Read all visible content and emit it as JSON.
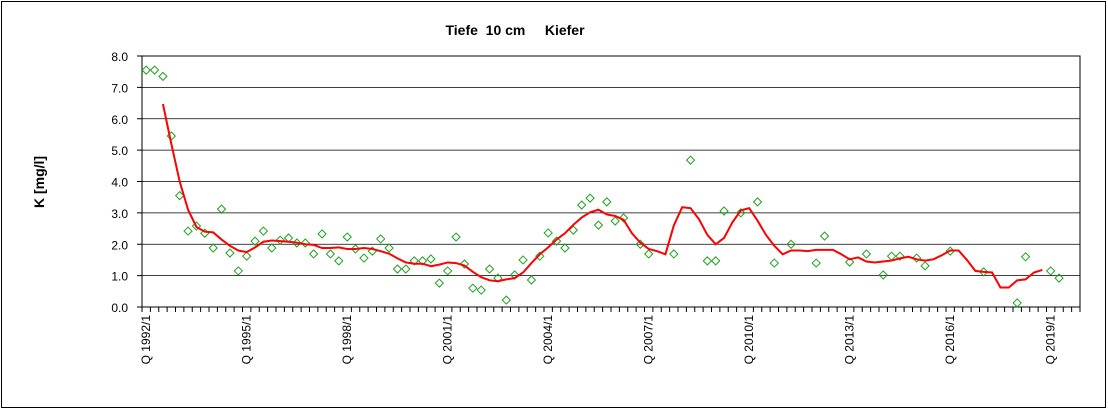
{
  "chart_data": {
    "type": "line",
    "title": "Tiefe  10 cm     Kiefer",
    "y_label": "K [mg/l]",
    "categories": [
      "Q 1992/1",
      null,
      null,
      null,
      null,
      null,
      null,
      null,
      null,
      null,
      null,
      null,
      "Q 1995/1",
      null,
      null,
      null,
      null,
      null,
      null,
      null,
      null,
      null,
      null,
      null,
      "Q 1998/1",
      null,
      null,
      null,
      null,
      null,
      null,
      null,
      null,
      null,
      null,
      null,
      "Q 2001/1",
      null,
      null,
      null,
      null,
      null,
      null,
      null,
      null,
      null,
      null,
      null,
      "Q 2004/1",
      null,
      null,
      null,
      null,
      null,
      null,
      null,
      null,
      null,
      null,
      null,
      "Q 2007/1",
      null,
      null,
      null,
      null,
      null,
      null,
      null,
      null,
      null,
      null,
      null,
      "Q 2010/1",
      null,
      null,
      null,
      null,
      null,
      null,
      null,
      null,
      null,
      null,
      null,
      "Q 2013/1",
      null,
      null,
      null,
      null,
      null,
      null,
      null,
      null,
      null,
      null,
      null,
      "Q 2016/1",
      null,
      null,
      null,
      null,
      null,
      null,
      null,
      null,
      null,
      null,
      null,
      "Q 2019/1",
      null,
      null,
      null
    ],
    "series": [
      {
        "style": "markers",
        "color": "#22a022",
        "values": [
          7.55,
          7.55,
          7.35,
          5.45,
          3.55,
          2.42,
          2.58,
          2.35,
          1.88,
          3.12,
          1.72,
          1.15,
          1.62,
          2.1,
          2.42,
          1.88,
          2.13,
          2.2,
          2.04,
          2.04,
          1.69,
          2.33,
          1.69,
          1.47,
          2.23,
          1.85,
          1.56,
          1.78,
          2.17,
          1.88,
          1.21,
          1.21,
          1.47,
          1.47,
          1.53,
          0.76,
          1.15,
          2.23,
          1.37,
          0.6,
          0.54,
          1.21,
          0.92,
          0.22,
          1.02,
          1.5,
          0.86,
          1.62,
          2.36,
          2.1,
          1.88,
          2.45,
          3.25,
          3.47,
          2.61,
          3.35,
          2.74,
          2.84,
          null,
          2.0,
          1.69,
          null,
          null,
          1.69,
          null,
          4.68,
          null,
          1.47,
          1.47,
          3.06,
          null,
          3.0,
          null,
          3.35,
          null,
          1.4,
          null,
          2.0,
          null,
          null,
          1.4,
          2.26,
          null,
          null,
          1.43,
          null,
          1.69,
          null,
          1.02,
          1.62,
          1.62,
          null,
          1.56,
          1.31,
          null,
          null,
          1.78,
          null,
          null,
          null,
          1.12,
          null,
          null,
          null,
          0.13,
          1.6,
          null,
          null,
          1.15,
          0.92,
          null,
          null
        ]
      },
      {
        "style": "line",
        "color": "#ff0000",
        "values": [
          null,
          null,
          6.47,
          5.2,
          4.0,
          3.1,
          2.55,
          2.4,
          2.38,
          2.15,
          1.95,
          1.8,
          1.75,
          1.9,
          2.08,
          2.12,
          2.1,
          2.08,
          2.05,
          2.0,
          1.98,
          1.88,
          1.88,
          1.9,
          1.85,
          1.85,
          1.88,
          1.85,
          1.78,
          1.7,
          1.55,
          1.42,
          1.38,
          1.38,
          1.3,
          1.35,
          1.42,
          1.4,
          1.32,
          1.12,
          0.95,
          0.85,
          0.82,
          0.88,
          0.92,
          1.1,
          1.4,
          1.68,
          1.9,
          2.15,
          2.35,
          2.62,
          2.85,
          3.02,
          3.1,
          2.95,
          2.9,
          2.78,
          2.35,
          2.05,
          1.85,
          1.78,
          1.68,
          2.6,
          3.18,
          3.15,
          2.8,
          2.3,
          2.0,
          2.2,
          2.7,
          3.08,
          3.15,
          2.75,
          2.3,
          1.95,
          1.68,
          1.8,
          1.8,
          1.78,
          1.82,
          1.82,
          1.82,
          1.68,
          1.52,
          1.58,
          1.45,
          1.42,
          1.45,
          1.48,
          1.55,
          1.6,
          1.52,
          1.48,
          1.52,
          1.65,
          1.8,
          1.8,
          1.5,
          1.15,
          1.12,
          1.1,
          0.62,
          0.62,
          0.85,
          0.88,
          1.1,
          1.18,
          null,
          null,
          null,
          null
        ]
      }
    ],
    "ylim": [
      0,
      8
    ],
    "yticks": [
      {
        "value": 0,
        "label": "0.0"
      },
      {
        "value": 1,
        "label": "1.0"
      },
      {
        "value": 2,
        "label": "2.0"
      },
      {
        "value": 3,
        "label": "3.0"
      },
      {
        "value": 4,
        "label": "4.0"
      },
      {
        "value": 5,
        "label": "5.0"
      },
      {
        "value": 6,
        "label": "6.0"
      },
      {
        "value": 7,
        "label": "7.0"
      },
      {
        "value": 8,
        "label": "8.0"
      }
    ],
    "grid": true
  }
}
